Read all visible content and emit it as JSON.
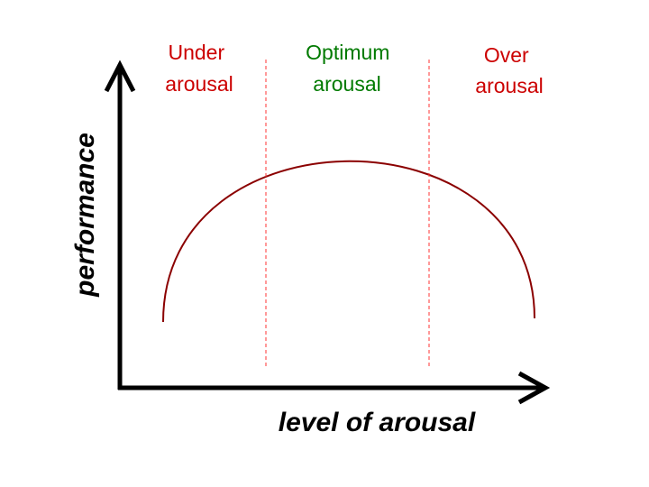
{
  "axes": {
    "y_label": "performance",
    "x_label": "level of arousal"
  },
  "zones": [
    {
      "lines": [
        "Under",
        "arousal"
      ],
      "color": "#cc0000"
    },
    {
      "lines": [
        "Optimum",
        "arousal"
      ],
      "color": "#007a00"
    },
    {
      "lines": [
        "Over",
        "arousal"
      ],
      "color": "#cc0000"
    }
  ],
  "colors": {
    "curve": "#8b0000",
    "divider": "#ff3333",
    "axis": "#000000"
  }
}
